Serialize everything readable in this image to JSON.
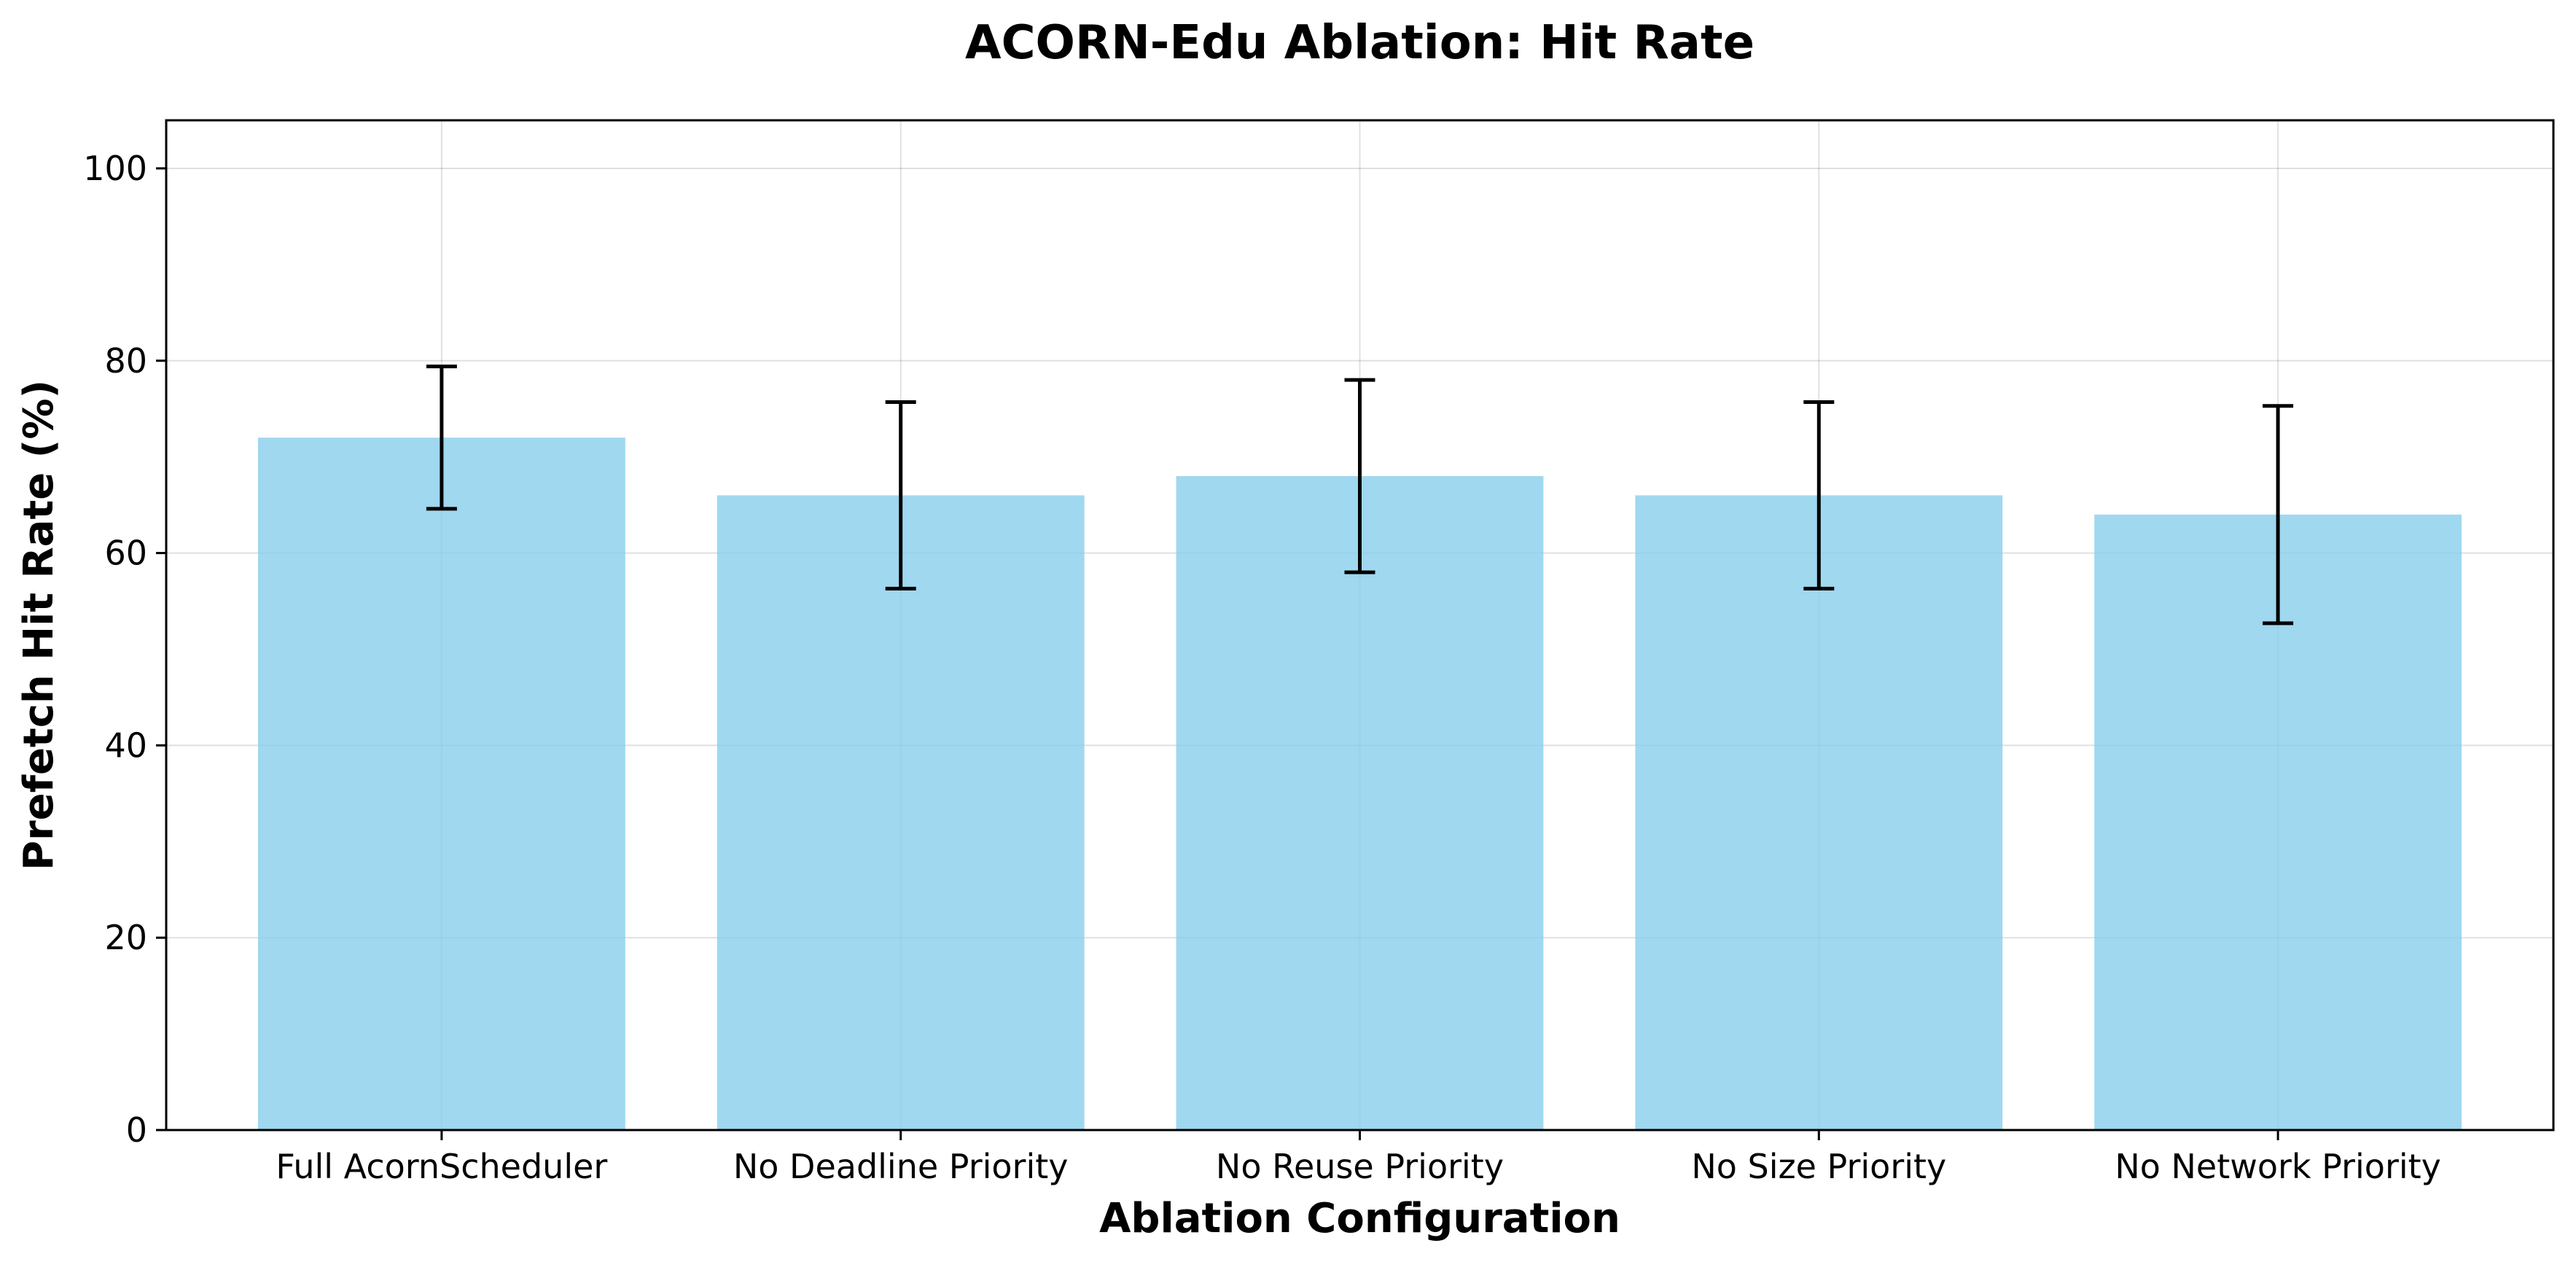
{
  "chart_data": {
    "type": "bar",
    "title": "ACORN-Edu Ablation: Hit Rate",
    "xlabel": "Ablation Configuration",
    "ylabel": "Prefetch Hit Rate (%)",
    "categories": [
      "Full AcornScheduler",
      "No Deadline Priority",
      "No Reuse Priority",
      "No Size Priority",
      "No Network Priority"
    ],
    "values": [
      72,
      66,
      68,
      66,
      64
    ],
    "errors": [
      7.4,
      9.7,
      10.0,
      9.7,
      11.3
    ],
    "ylim": [
      0,
      105
    ],
    "yticks": [
      0,
      20,
      40,
      60,
      80,
      100
    ],
    "grid": true,
    "bar_color": "#87CEEB",
    "bar_opacity": 0.8,
    "error_color": "#000000"
  }
}
